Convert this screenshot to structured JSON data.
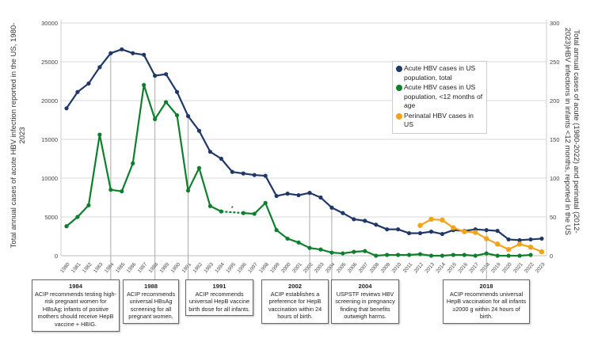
{
  "chart_data": {
    "type": "line",
    "x": [
      1980,
      1981,
      1982,
      1983,
      1984,
      1985,
      1986,
      1987,
      1988,
      1989,
      1990,
      1991,
      1992,
      1993,
      1994,
      1995,
      1996,
      1997,
      1998,
      1999,
      2000,
      2001,
      2002,
      2003,
      2004,
      2005,
      2006,
      2007,
      2008,
      2009,
      2010,
      2011,
      2012,
      2013,
      2014,
      2015,
      2016,
      2017,
      2018,
      2019,
      2020,
      2021,
      2022,
      2023
    ],
    "series": [
      {
        "name": "Acute HBV cases in US population, total",
        "axis": "left",
        "color": "#1f3868",
        "values": [
          19000,
          21100,
          22200,
          24300,
          26100,
          26600,
          26100,
          25900,
          23200,
          23400,
          21100,
          18000,
          16100,
          13400,
          12500,
          10800,
          10600,
          10400,
          10300,
          7700,
          8000,
          7800,
          8100,
          7500,
          6200,
          5500,
          4700,
          4500,
          4000,
          3400,
          3400,
          2900,
          2900,
          3100,
          2800,
          3300,
          3200,
          3400,
          3300,
          3200,
          2100,
          2000,
          2100,
          2200
        ]
      },
      {
        "name": "Acute HBV cases in US population, <12 months of age",
        "axis": "right",
        "color": "#0e7f2c",
        "values": [
          38,
          50,
          65,
          156,
          85,
          83,
          119,
          220,
          176,
          198,
          181,
          84,
          113,
          64,
          57,
          null,
          55,
          54,
          68,
          33,
          22,
          17,
          10,
          8,
          4,
          3,
          5,
          6,
          0,
          1,
          1,
          1,
          2,
          0,
          0,
          1,
          1,
          0,
          3,
          0,
          0,
          0,
          1,
          null
        ]
      },
      {
        "name": "Perinatal HBV cases in US",
        "axis": "right",
        "color": "#f5a21b",
        "values": [
          null,
          null,
          null,
          null,
          null,
          null,
          null,
          null,
          null,
          null,
          null,
          null,
          null,
          null,
          null,
          null,
          null,
          null,
          null,
          null,
          null,
          null,
          null,
          null,
          null,
          null,
          null,
          null,
          null,
          null,
          null,
          null,
          39,
          47,
          46,
          36,
          31,
          30,
          22,
          15,
          8,
          15,
          11,
          5
        ]
      }
    ],
    "ylabel": "Total annual cases of acute HBV infection reported in the US, 1980-2023",
    "y2label": "Total annual cases of acute (1980-2022) and perinatal (2012-2023)HBV infections in infants <12 months, reported in the US",
    "ylim": [
      0,
      30000
    ],
    "y2lim": [
      0,
      300
    ],
    "yticks": [
      "0",
      "5000",
      "10000",
      "15000",
      "20000",
      "25000",
      "30000"
    ],
    "y2ticks": [
      "0",
      "50",
      "100",
      "150",
      "200",
      "250",
      "300"
    ],
    "grid": true,
    "legend": "top-right",
    "gap_marker": "*",
    "annotations": [
      {
        "year": 1984,
        "title": "1984",
        "text": "ACIP recommends testing high-risk pregnant women for HBsAg; infants of positive mothers should receive HepB vaccine + HBIG."
      },
      {
        "year": 1988,
        "title": "1988",
        "text": "ACIP recommends universal HBsAg screening for all pregnant women."
      },
      {
        "year": 1991,
        "title": "1991",
        "text": "ACIP recommends universal HepB vaccine birth dose for all infants."
      },
      {
        "year": 2002,
        "title": "2002",
        "text": "ACIP establishes a preference for HepB vaccination within 24 hours of birth."
      },
      {
        "year": 2004,
        "title": "2004",
        "text": "USPSTF reviews HBV screening in pregnancy finding that benefits outweigh harms."
      },
      {
        "year": 2018,
        "title": "2018",
        "text": "ACIP recommends universal HepB vaccination for all infants ≥2000 g within 24 hours of birth."
      }
    ]
  }
}
